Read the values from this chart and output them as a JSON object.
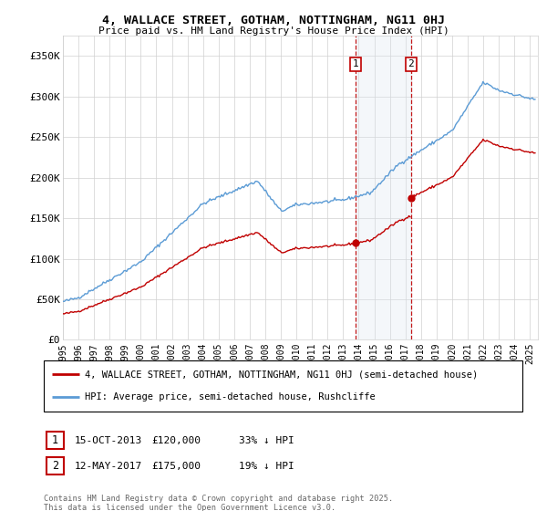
{
  "title_line1": "4, WALLACE STREET, GOTHAM, NOTTINGHAM, NG11 0HJ",
  "title_line2": "Price paid vs. HM Land Registry's House Price Index (HPI)",
  "ylim": [
    0,
    375000
  ],
  "yticks": [
    0,
    50000,
    100000,
    150000,
    200000,
    250000,
    300000,
    350000
  ],
  "ytick_labels": [
    "£0",
    "£50K",
    "£100K",
    "£150K",
    "£200K",
    "£250K",
    "£300K",
    "£350K"
  ],
  "legend_line1": "4, WALLACE STREET, GOTHAM, NOTTINGHAM, NG11 0HJ (semi-detached house)",
  "legend_line2": "HPI: Average price, semi-detached house, Rushcliffe",
  "transaction1_date": "15-OCT-2013",
  "transaction1_price": "£120,000",
  "transaction1_note": "33% ↓ HPI",
  "transaction1_year": 2013.79,
  "transaction1_value": 120000,
  "transaction2_date": "12-MAY-2017",
  "transaction2_price": "£175,000",
  "transaction2_note": "19% ↓ HPI",
  "transaction2_year": 2017.36,
  "transaction2_value": 175000,
  "footnote": "Contains HM Land Registry data © Crown copyright and database right 2025.\nThis data is licensed under the Open Government Licence v3.0.",
  "hpi_color": "#5b9bd5",
  "price_color": "#c00000",
  "shade_color": "#dce6f1",
  "grid_color": "#d0d0d0",
  "background_color": "#ffffff",
  "annotation_box_color": "#c00000",
  "xlim_left": 1995,
  "xlim_right": 2025.5
}
